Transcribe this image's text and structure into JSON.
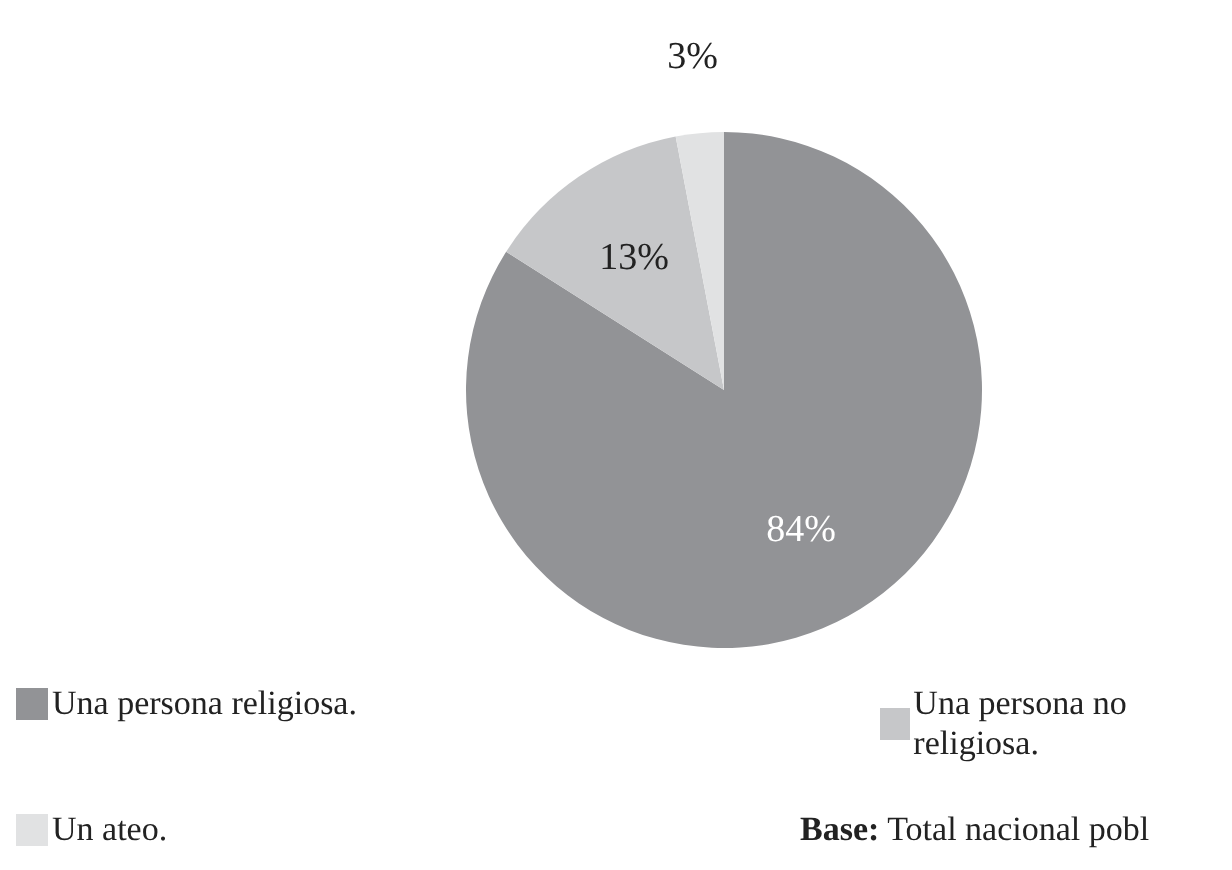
{
  "chart_data": {
    "type": "pie",
    "categories": [
      "Una persona religiosa.",
      "Una persona no religiosa.",
      "Un ateo."
    ],
    "values": [
      84,
      13,
      3
    ],
    "colors": [
      "#929396",
      "#c6c7c9",
      "#e1e2e3"
    ],
    "value_labels": [
      "84%",
      "13%",
      "3%"
    ],
    "legend": "bottom",
    "annotations": [
      "Base: Total nacional pobl"
    ]
  }
}
